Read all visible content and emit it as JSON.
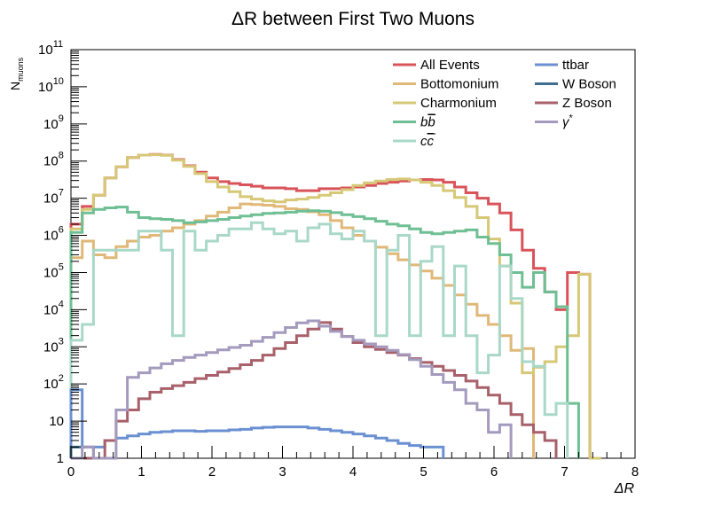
{
  "chart_data": {
    "type": "line",
    "style": "step-histogram",
    "title": "ΔR between First Two Muons",
    "xlabel": "ΔR",
    "ylabel": "N",
    "ylabel_subscript": "muons",
    "xlim": [
      0,
      8
    ],
    "ylim": [
      1,
      100000000000
    ],
    "y_scale": "log",
    "x_ticks": [
      "0",
      "1",
      "2",
      "3",
      "4",
      "5",
      "6",
      "7",
      "8"
    ],
    "y_ticks": [
      {
        "value": 1,
        "base": "1",
        "exp": ""
      },
      {
        "value": 10,
        "base": "10",
        "exp": ""
      },
      {
        "value": 100,
        "base": "10",
        "exp": "2"
      },
      {
        "value": 1000,
        "base": "10",
        "exp": "3"
      },
      {
        "value": 10000,
        "base": "10",
        "exp": "4"
      },
      {
        "value": 100000,
        "base": "10",
        "exp": "5"
      },
      {
        "value": 1000000,
        "base": "10",
        "exp": "6"
      },
      {
        "value": 10000000,
        "base": "10",
        "exp": "7"
      },
      {
        "value": 100000000,
        "base": "10",
        "exp": "8"
      },
      {
        "value": 1000000000,
        "base": "10",
        "exp": "9"
      },
      {
        "value": 10000000000,
        "base": "10",
        "exp": "10"
      },
      {
        "value": 100000000000,
        "base": "10",
        "exp": "11"
      }
    ],
    "bin_width": 0.16,
    "bin_start": 0.0,
    "grid": false,
    "legend_position": "top-right",
    "series": [
      {
        "name": "All Events",
        "color": "#d9545a",
        "values": [
          2000000,
          6000000,
          12000000,
          35000000,
          70000000,
          125000000,
          145000000,
          150000000,
          145000000,
          110000000,
          75000000,
          50000000,
          35000000,
          28000000,
          25000000,
          23000000,
          21000000,
          19000000,
          19000000,
          18000000,
          16000000,
          16000000,
          18000000,
          18000000,
          19000000,
          20000000,
          22000000,
          25000000,
          27000000,
          29000000,
          31000000,
          32000000,
          31000000,
          27000000,
          20000000,
          14000000,
          10000000,
          7000000,
          4000000,
          1400000,
          400000,
          130000,
          30000,
          10000,
          100000,
          90000
        ]
      },
      {
        "name": "Bottomonium",
        "color": "#e0b878",
        "values": [
          250000,
          700000,
          300000,
          250000,
          500000,
          700000,
          900000,
          1000000,
          1300000,
          1600000,
          2000000,
          2500000,
          3300000,
          4200000,
          5500000,
          7000000,
          6800000,
          6500000,
          6000000,
          5200000,
          5000000,
          4300000,
          3600000,
          2500000,
          1600000,
          1000000,
          700000,
          480000,
          320000,
          220000,
          160000,
          110000,
          70000,
          45000,
          25000,
          14000,
          7000,
          4000,
          2000,
          800,
          900
        ]
      },
      {
        "name": "Charmonium",
        "color": "#d6c876",
        "values": [
          1500000,
          5000000,
          12000000,
          35000000,
          70000000,
          125000000,
          145000000,
          148000000,
          143000000,
          106000000,
          72000000,
          46000000,
          28000000,
          20000000,
          15000000,
          11000000,
          9500000,
          8500000,
          8000000,
          9000000,
          9500000,
          10500000,
          12000000,
          14000000,
          17000000,
          22000000,
          26000000,
          29000000,
          32000000,
          33000000,
          31000000,
          27000000,
          22000000,
          16000000,
          10500000,
          6000000,
          3000000,
          800000,
          150000,
          15000,
          200,
          280,
          400,
          1000,
          2000,
          90000,
          1
        ]
      },
      {
        "name": "bb",
        "name_bar": true,
        "color": "#6fbf94",
        "values": [
          1200000,
          4000000,
          5000000,
          5500000,
          5800000,
          4200000,
          3000000,
          2800000,
          2700000,
          2500000,
          2200000,
          2300000,
          2500000,
          2700000,
          3000000,
          3300000,
          3600000,
          3900000,
          4000000,
          4200000,
          4500000,
          4600000,
          4500000,
          4100000,
          3600000,
          3200000,
          2800000,
          2400000,
          2000000,
          1800000,
          1500000,
          1200000,
          1100000,
          1200000,
          1300000,
          1400000,
          900000,
          600000,
          300000,
          100000,
          40000,
          100000,
          30000,
          12000,
          30
        ]
      },
      {
        "name": "cc",
        "name_bar": true,
        "color": "#a9d8c8",
        "values": [
          1500,
          4000,
          400000,
          400000,
          400000,
          400000,
          1300000,
          1300000,
          400000,
          2000,
          1300000,
          400000,
          700000,
          1000000,
          1500000,
          1500000,
          2200000,
          1500000,
          1100000,
          1300000,
          700000,
          1600000,
          2000000,
          1100000,
          800000,
          1300000,
          700000,
          2000,
          400000,
          1000000,
          2000,
          200000,
          500000,
          2000,
          150000,
          2000,
          200,
          600,
          150000,
          20000,
          400,
          300,
          15,
          30
        ]
      },
      {
        "name": "ttbar",
        "color": "#6b90d2",
        "values": [
          70,
          2,
          2,
          3,
          3.5,
          4,
          4.5,
          5,
          5.2,
          5.5,
          5.5,
          5.3,
          5.5,
          5.5,
          5.8,
          6,
          6.5,
          6.8,
          7,
          7,
          7,
          6.5,
          6,
          5.5,
          5,
          4.5,
          4,
          3.5,
          3,
          2.5,
          2.2,
          2,
          2
        ]
      },
      {
        "name": "W Boson",
        "color": "#3f6e8f",
        "values": [
          2,
          2
        ]
      },
      {
        "name": "Z Boson",
        "color": "#a8606a",
        "values": [
          1,
          1,
          1,
          3,
          10,
          20,
          40,
          60,
          75,
          90,
          110,
          140,
          170,
          210,
          260,
          330,
          430,
          600,
          900,
          1300,
          2000,
          3000,
          4500,
          3000,
          1900,
          1300,
          1000,
          850,
          700,
          600,
          480,
          380,
          300,
          230,
          170,
          120,
          80,
          50,
          30,
          15,
          8,
          5,
          3
        ]
      },
      {
        "name": "γ*",
        "color": "#a49abd",
        "values": [
          1,
          2,
          1,
          1,
          20,
          150,
          200,
          270,
          350,
          430,
          520,
          600,
          700,
          830,
          960,
          1100,
          1400,
          1800,
          2400,
          3300,
          4400,
          5000,
          3600,
          2600,
          1900,
          1500,
          1200,
          1000,
          800,
          620,
          450,
          300,
          180,
          110,
          70,
          30,
          20,
          5,
          8
        ]
      }
    ]
  }
}
